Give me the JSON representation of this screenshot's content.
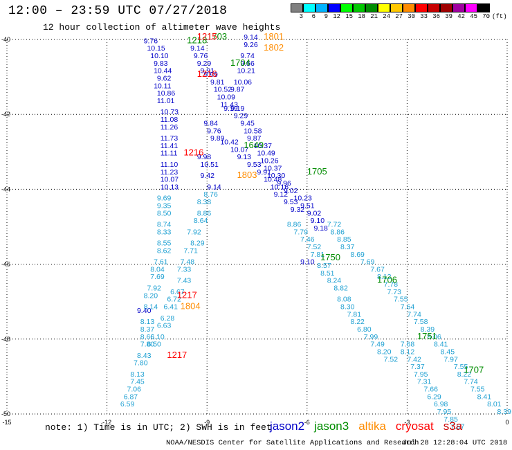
{
  "header": {
    "title": "12:00 – 23:59 UTC 07/27/2018",
    "subtitle": "12 hour collection of altimeter wave heights"
  },
  "legend": {
    "unit": "(ft)",
    "stops": [
      {
        "label": "3",
        "color": "#808080"
      },
      {
        "label": "6",
        "color": "#00ffff"
      },
      {
        "label": "9",
        "color": "#00b4ff"
      },
      {
        "label": "12",
        "color": "#0000ff"
      },
      {
        "label": "15",
        "color": "#00ff00"
      },
      {
        "label": "18",
        "color": "#00c800"
      },
      {
        "label": "21",
        "color": "#008c00"
      },
      {
        "label": "24",
        "color": "#ffff00"
      },
      {
        "label": "27",
        "color": "#ffc800"
      },
      {
        "label": "30",
        "color": "#ff8c00"
      },
      {
        "label": "33",
        "color": "#ff0000"
      },
      {
        "label": "36",
        "color": "#c80000"
      },
      {
        "label": "39",
        "color": "#a00000"
      },
      {
        "label": "42",
        "color": "#a000a0"
      },
      {
        "label": "45",
        "color": "#ff00ff"
      },
      {
        "label": "70",
        "color": "#000000"
      }
    ]
  },
  "axes": {
    "x_ticks": [
      "-15",
      "-12",
      "-9",
      "-6",
      "-3",
      "0"
    ],
    "y_ticks": [
      "-40",
      "-42",
      "-44",
      "-46",
      "-48",
      "-50"
    ]
  },
  "colors": {
    "jason2": "#0000c8",
    "jason3": "#008c00",
    "altika": "#ff8c00",
    "cryosat": "#ff0000",
    "s3a": "#c80000",
    "light": "#1ea0d2"
  },
  "tracks": [
    {
      "sat": "jason2",
      "color": "#0000c8",
      "points": [
        [
          -10.9,
          -40.1,
          "9.76"
        ],
        [
          -10.8,
          -40.3,
          "10.15"
        ],
        [
          -10.7,
          -40.5,
          "10.10"
        ],
        [
          -10.6,
          -40.7,
          "9.83"
        ],
        [
          -10.6,
          -40.9,
          "10.44"
        ],
        [
          -10.5,
          -41.1,
          "9.62"
        ],
        [
          -10.6,
          -41.3,
          "10.11"
        ],
        [
          -10.5,
          -41.5,
          "10.86"
        ],
        [
          -10.5,
          -41.7,
          "11.01"
        ],
        [
          -10.4,
          -42.0,
          "10.73"
        ],
        [
          -10.4,
          -42.2,
          "11.08"
        ],
        [
          -10.4,
          -42.4,
          "11.26"
        ],
        [
          -10.4,
          -42.7,
          "11.73"
        ],
        [
          -10.4,
          -42.9,
          "11.41"
        ],
        [
          -10.4,
          -43.1,
          "11.11"
        ],
        [
          -10.4,
          -43.4,
          "11.10"
        ],
        [
          -10.4,
          -43.6,
          "11.23"
        ],
        [
          -10.4,
          -43.8,
          "10.07"
        ],
        [
          -10.4,
          -44.0,
          "10.13"
        ],
        [
          -9.5,
          -40.3,
          "9.14"
        ],
        [
          -9.4,
          -40.5,
          "9.76"
        ],
        [
          -9.3,
          -40.7,
          "9.29"
        ],
        [
          -9.2,
          -40.9,
          "9.91"
        ],
        [
          -9.1,
          -41.0,
          "9.99"
        ],
        [
          -8.9,
          -41.2,
          "9.81"
        ],
        [
          -8.8,
          -41.4,
          "10.52"
        ],
        [
          -8.7,
          -41.6,
          "10.09"
        ],
        [
          -8.6,
          -41.8,
          "11.43"
        ],
        [
          -8.5,
          -41.9,
          "9.19"
        ],
        [
          -7.9,
          -40.0,
          "9.14"
        ],
        [
          -7.9,
          -40.2,
          "9.26"
        ],
        [
          -8.0,
          -40.5,
          "9.74"
        ],
        [
          -8.0,
          -40.7,
          "9.56"
        ],
        [
          -8.1,
          -40.9,
          "10.21"
        ],
        [
          -8.2,
          -41.2,
          "10.06"
        ],
        [
          -8.3,
          -41.4,
          "9.87"
        ],
        [
          -8.3,
          -41.9,
          "9.19"
        ],
        [
          -8.2,
          -42.1,
          "9.29"
        ],
        [
          -8.0,
          -42.3,
          "9.45"
        ],
        [
          -7.9,
          -42.5,
          "10.58"
        ],
        [
          -7.8,
          -42.7,
          "9.87"
        ],
        [
          -7.6,
          -42.9,
          "10.37"
        ],
        [
          -7.5,
          -43.1,
          "10.49"
        ],
        [
          -7.4,
          -43.3,
          "10.26"
        ],
        [
          -7.3,
          -43.5,
          "10.37"
        ],
        [
          -7.2,
          -43.7,
          "10.30"
        ],
        [
          -6.9,
          -43.9,
          "9.96"
        ],
        [
          -6.7,
          -44.1,
          "9.02"
        ],
        [
          -6.4,
          -44.3,
          "10.23"
        ],
        [
          -6.2,
          -44.5,
          "9.51"
        ],
        [
          -6.0,
          -44.7,
          "9.02"
        ],
        [
          -5.9,
          -44.9,
          "9.10"
        ],
        [
          -5.8,
          -45.1,
          "9.18"
        ],
        [
          -6.2,
          -46.0,
          "9.10"
        ],
        [
          -9.1,
          -42.3,
          "9.84"
        ],
        [
          -9.0,
          -42.5,
          "9.76"
        ],
        [
          -8.9,
          -42.7,
          "9.89"
        ],
        [
          -8.6,
          -42.8,
          "10.42"
        ],
        [
          -8.3,
          -43.0,
          "10.07"
        ],
        [
          -8.1,
          -43.2,
          "9.13"
        ],
        [
          -7.8,
          -43.4,
          "9.53"
        ],
        [
          -7.5,
          -43.6,
          "9.91"
        ],
        [
          -7.3,
          -43.8,
          "10.48"
        ],
        [
          -7.1,
          -44.0,
          "10.16"
        ],
        [
          -7.0,
          -44.2,
          "9.12"
        ],
        [
          -6.7,
          -44.4,
          "9.53"
        ],
        [
          -6.5,
          -44.6,
          "9.32"
        ],
        [
          -9.3,
          -43.2,
          "9.98"
        ],
        [
          -9.2,
          -43.4,
          "10.51"
        ],
        [
          -9.2,
          -43.7,
          "9.42"
        ],
        [
          -9.0,
          -44.0,
          "9.14"
        ],
        [
          -11.1,
          -47.3,
          "9.40"
        ]
      ]
    },
    {
      "sat": "light",
      "color": "#1ea0d2",
      "points": [
        [
          -10.5,
          -44.3,
          "9.69"
        ],
        [
          -10.5,
          -44.5,
          "9.35"
        ],
        [
          -10.5,
          -44.7,
          "8.50"
        ],
        [
          -10.5,
          -45.0,
          "8.74"
        ],
        [
          -10.5,
          -45.2,
          "8.33"
        ],
        [
          -10.5,
          -45.5,
          "8.55"
        ],
        [
          -10.5,
          -45.7,
          "8.62"
        ],
        [
          -10.6,
          -46.0,
          "7.61"
        ],
        [
          -10.7,
          -46.2,
          "8.04"
        ],
        [
          -10.7,
          -46.4,
          "7.69"
        ],
        [
          -10.8,
          -46.7,
          "7.92"
        ],
        [
          -10.9,
          -46.9,
          "8.20"
        ],
        [
          -10.9,
          -47.2,
          "8.14"
        ],
        [
          -11.0,
          -47.6,
          "8.13"
        ],
        [
          -11.0,
          -47.8,
          "8.37"
        ],
        [
          -11.0,
          -48.0,
          "8.66"
        ],
        [
          -11.0,
          -48.2,
          "7.80"
        ],
        [
          -11.1,
          -48.5,
          "8.43"
        ],
        [
          -11.2,
          -48.7,
          "7.80"
        ],
        [
          -11.3,
          -49.0,
          "8.13"
        ],
        [
          -11.3,
          -49.2,
          "7.45"
        ],
        [
          -11.4,
          -49.4,
          "7.06"
        ],
        [
          -11.5,
          -49.6,
          "6.87"
        ],
        [
          -11.6,
          -49.8,
          "6.59"
        ],
        [
          -9.1,
          -44.2,
          "8.76"
        ],
        [
          -9.3,
          -44.4,
          "8.38"
        ],
        [
          -9.3,
          -44.7,
          "8.86"
        ],
        [
          -9.4,
          -44.9,
          "8.64"
        ],
        [
          -9.6,
          -45.2,
          "7.92"
        ],
        [
          -9.5,
          -45.5,
          "8.29"
        ],
        [
          -9.7,
          -45.7,
          "7.71"
        ],
        [
          -9.8,
          -46.0,
          "7.48"
        ],
        [
          -9.9,
          -46.2,
          "7.33"
        ],
        [
          -9.9,
          -46.5,
          "7.43"
        ],
        [
          -10.1,
          -46.8,
          "6.67"
        ],
        [
          -10.2,
          -47.0,
          "6.72"
        ],
        [
          -10.3,
          -47.2,
          "6.41"
        ],
        [
          -10.4,
          -47.5,
          "6.28"
        ],
        [
          -10.5,
          -47.7,
          "6.63"
        ],
        [
          -10.7,
          -48.0,
          "6.10"
        ],
        [
          -10.8,
          -48.2,
          "6.50"
        ],
        [
          -6.6,
          -45.0,
          "8.86"
        ],
        [
          -6.4,
          -45.2,
          "7.79"
        ],
        [
          -6.2,
          -45.4,
          "7.46"
        ],
        [
          -6.0,
          -45.6,
          "7.52"
        ],
        [
          -5.9,
          -45.8,
          "7.81"
        ],
        [
          -5.7,
          -46.1,
          "8.57"
        ],
        [
          -5.6,
          -46.3,
          "8.51"
        ],
        [
          -5.4,
          -46.5,
          "8.24"
        ],
        [
          -5.2,
          -46.7,
          "8.82"
        ],
        [
          -5.1,
          -47.0,
          "8.08"
        ],
        [
          -5.0,
          -47.2,
          "8.30"
        ],
        [
          -4.8,
          -47.4,
          "7.81"
        ],
        [
          -4.7,
          -47.6,
          "8.22"
        ],
        [
          -4.5,
          -47.8,
          "6.80"
        ],
        [
          -4.3,
          -48.0,
          "7.99"
        ],
        [
          -4.1,
          -48.2,
          "7.49"
        ],
        [
          -3.9,
          -48.4,
          "8.20"
        ],
        [
          -3.7,
          -48.6,
          "7.52"
        ],
        [
          -5.4,
          -45.0,
          "7.72"
        ],
        [
          -5.3,
          -45.2,
          "8.86"
        ],
        [
          -5.1,
          -45.4,
          "8.85"
        ],
        [
          -5.0,
          -45.6,
          "8.37"
        ],
        [
          -4.7,
          -45.8,
          "8.69"
        ],
        [
          -4.4,
          -46.0,
          "7.69"
        ],
        [
          -4.1,
          -46.2,
          "7.67"
        ],
        [
          -3.9,
          -46.4,
          "8.12"
        ],
        [
          -3.7,
          -46.6,
          "7.78"
        ],
        [
          -3.6,
          -46.8,
          "7.73"
        ],
        [
          -3.4,
          -47.0,
          "7.55"
        ],
        [
          -3.2,
          -47.2,
          "7.64"
        ],
        [
          -3.0,
          -47.4,
          "7.74"
        ],
        [
          -2.8,
          -47.6,
          "7.58"
        ],
        [
          -2.6,
          -47.8,
          "8.39"
        ],
        [
          -2.4,
          -48.0,
          "8.06"
        ],
        [
          -2.2,
          -48.2,
          "8.41"
        ],
        [
          -2.0,
          -48.4,
          "8.45"
        ],
        [
          -1.9,
          -48.6,
          "7.97"
        ],
        [
          -1.6,
          -48.8,
          "7.55"
        ],
        [
          -1.5,
          -49.0,
          "8.22"
        ],
        [
          -1.3,
          -49.2,
          "7.74"
        ],
        [
          -1.1,
          -49.4,
          "7.55"
        ],
        [
          -0.9,
          -49.6,
          "8.41"
        ],
        [
          -0.6,
          -49.8,
          "8.01"
        ],
        [
          -0.3,
          -50.0,
          "8.39"
        ],
        [
          -3.2,
          -48.2,
          "7.68"
        ],
        [
          -3.2,
          -48.4,
          "8.12"
        ],
        [
          -3.0,
          -48.6,
          "7.42"
        ],
        [
          -2.9,
          -48.8,
          "7.37"
        ],
        [
          -2.8,
          -49.0,
          "7.95"
        ],
        [
          -2.7,
          -49.2,
          "7.31"
        ],
        [
          -2.5,
          -49.4,
          "7.66"
        ],
        [
          -2.4,
          -49.6,
          "6.29"
        ],
        [
          -2.2,
          -49.8,
          "6.98"
        ],
        [
          -2.1,
          -50.0,
          "7.95"
        ],
        [
          -1.9,
          -50.2,
          "7.85"
        ],
        [
          -1.7,
          -50.4,
          "7.57"
        ]
      ]
    },
    {
      "sat": "jason3",
      "color": "#008c00",
      "points": [
        [
          -9.6,
          -40.1,
          "1218"
        ],
        [
          -8.3,
          -40.7,
          "1704"
        ],
        [
          -7.9,
          -42.9,
          "1649"
        ],
        [
          -6.0,
          -43.6,
          "1705"
        ],
        [
          -5.6,
          -45.9,
          "1750"
        ],
        [
          -3.9,
          -46.5,
          "1706"
        ],
        [
          -2.7,
          -48.0,
          "1751"
        ],
        [
          -1.3,
          -48.9,
          "1707"
        ],
        [
          -9.0,
          -40.0,
          "1703"
        ]
      ]
    },
    {
      "sat": "altika",
      "color": "#ff8c00",
      "points": [
        [
          -7.3,
          -40.0,
          "1801"
        ],
        [
          -7.3,
          -40.3,
          "1802"
        ],
        [
          -8.1,
          -43.7,
          "1803"
        ],
        [
          -9.8,
          -47.2,
          "1804"
        ]
      ]
    },
    {
      "sat": "cryosat",
      "color": "#ff0000",
      "points": [
        [
          -9.3,
          -40.0,
          "1215"
        ],
        [
          -9.3,
          -41.0,
          "1216"
        ],
        [
          -9.7,
          -43.1,
          "1216"
        ],
        [
          -9.9,
          -46.9,
          "1217"
        ],
        [
          -10.2,
          -48.5,
          "1217"
        ]
      ]
    }
  ],
  "note": "note:  1) Time is in UTC;  2) SWH is in feet",
  "satellites": [
    {
      "name": "jason2",
      "color": "#0000c8"
    },
    {
      "name": "jason3",
      "color": "#008c00"
    },
    {
      "name": "altika",
      "color": "#ff8c00"
    },
    {
      "name": "cryosat",
      "color": "#ff0000"
    },
    {
      "name": "s3a",
      "color": "#c80000"
    }
  ],
  "footer": {
    "credit": "NOAA/NESDIS Center for Satellite Applications and Research",
    "timestamp": "Jul 28 12:28:04 UTC 2018"
  }
}
